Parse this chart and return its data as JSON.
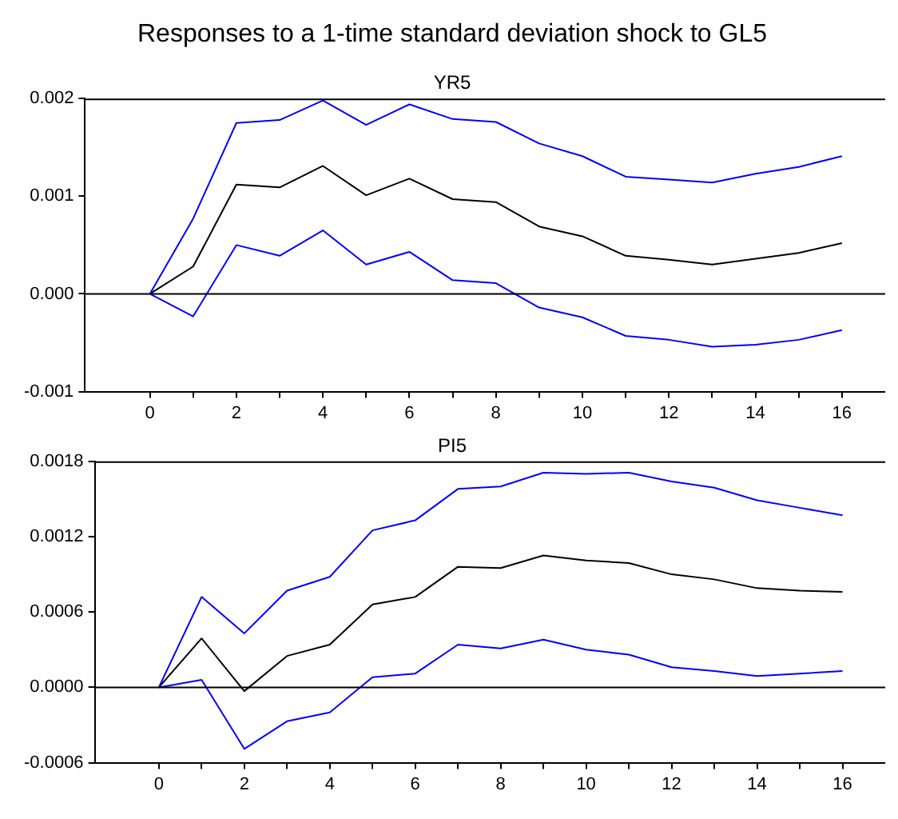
{
  "chart_data": [
    {
      "type": "line",
      "title": "Responses to a 1-time standard deviation shock to GL5",
      "subtitle": "YR5",
      "x": [
        0,
        1,
        2,
        3,
        4,
        5,
        6,
        7,
        8,
        9,
        10,
        11,
        12,
        13,
        14,
        15,
        16
      ],
      "series": [
        {
          "color": "#0000ff",
          "values": [
            0,
            0.00077,
            0.00175,
            0.00178,
            0.00198,
            0.00173,
            0.00194,
            0.00179,
            0.00176,
            0.00154,
            0.00141,
            0.0012,
            0.00117,
            0.00114,
            0.00123,
            0.0013,
            0.00141
          ]
        },
        {
          "color": "#000000",
          "values": [
            0,
            0.00028,
            0.00112,
            0.00109,
            0.00131,
            0.00101,
            0.00118,
            0.00097,
            0.00094,
            0.00069,
            0.00059,
            0.00039,
            0.00035,
            0.0003,
            0.00036,
            0.00042,
            0.00052
          ]
        },
        {
          "color": "#0000ff",
          "values": [
            0,
            -0.00023,
            0.0005,
            0.00039,
            0.00065,
            0.0003,
            0.00043,
            0.00014,
            0.00011,
            -0.00014,
            -0.00024,
            -0.00043,
            -0.00047,
            -0.00054,
            -0.00052,
            -0.00047,
            -0.00037
          ]
        }
      ],
      "xlim": [
        -1.5,
        17
      ],
      "xticks": [
        0,
        {
          "value": 1,
          "label": null
        },
        2,
        {
          "value": 3,
          "label": null
        },
        4,
        {
          "value": 5,
          "label": null
        },
        6,
        {
          "value": 7,
          "label": null
        },
        8,
        {
          "value": 9,
          "label": null
        },
        10,
        {
          "value": 11,
          "label": null
        },
        12,
        {
          "value": 13,
          "label": null
        },
        14,
        {
          "value": 15,
          "label": null
        },
        16
      ],
      "ylim": [
        -0.001,
        0.002
      ],
      "yticks": [
        {
          "value": -0.001,
          "label": "-0.001"
        },
        {
          "value": 0,
          "label": "0.000"
        },
        {
          "value": 0.001,
          "label": "0.001"
        },
        {
          "value": 0.002,
          "label": "0.002"
        }
      ],
      "ref_lines": [
        {
          "axis": "y",
          "value": 0,
          "color": "#000000"
        }
      ],
      "grid": false,
      "legend": false,
      "marker": "none",
      "line_style": "solid"
    },
    {
      "type": "line",
      "title": "PI5",
      "x": [
        0,
        1,
        2,
        3,
        4,
        5,
        6,
        7,
        8,
        9,
        10,
        11,
        12,
        13,
        14,
        15,
        16
      ],
      "series": [
        {
          "color": "#0000ff",
          "values": [
            0,
            0.00072,
            0.00043,
            0.00077,
            0.00088,
            0.00125,
            0.00133,
            0.00158,
            0.0016,
            0.00171,
            0.0017,
            0.00171,
            0.00164,
            0.00159,
            0.00149,
            0.00143,
            0.00137
          ]
        },
        {
          "color": "#000000",
          "values": [
            0,
            0.00039,
            -3e-05,
            0.00025,
            0.00034,
            0.00066,
            0.00072,
            0.00096,
            0.00095,
            0.00105,
            0.00101,
            0.00099,
            0.0009,
            0.00086,
            0.00079,
            0.00077,
            0.00076
          ]
        },
        {
          "color": "#0000ff",
          "values": [
            0,
            6e-05,
            -0.00049,
            -0.00027,
            -0.0002,
            8e-05,
            0.00011,
            0.00034,
            0.00031,
            0.00038,
            0.0003,
            0.00026,
            0.00016,
            0.00013,
            9e-05,
            0.00011,
            0.00013
          ]
        }
      ],
      "xlim": [
        -1.5,
        17
      ],
      "xticks": [
        0,
        {
          "value": 1,
          "label": null
        },
        2,
        {
          "value": 3,
          "label": null
        },
        4,
        {
          "value": 5,
          "label": null
        },
        6,
        {
          "value": 7,
          "label": null
        },
        8,
        {
          "value": 9,
          "label": null
        },
        10,
        {
          "value": 11,
          "label": null
        },
        12,
        {
          "value": 13,
          "label": null
        },
        14,
        {
          "value": 15,
          "label": null
        },
        16
      ],
      "ylim": [
        -0.0006,
        0.0018
      ],
      "yticks": [
        {
          "value": -0.0006,
          "label": "-0.0006"
        },
        {
          "value": 0,
          "label": "0.0000"
        },
        {
          "value": 0.0006,
          "label": "0.0006"
        },
        {
          "value": 0.0012,
          "label": "0.0012"
        },
        {
          "value": 0.0018,
          "label": "0.0018"
        }
      ],
      "ref_lines": [
        {
          "axis": "y",
          "value": 0,
          "color": "#000000"
        }
      ],
      "grid": false,
      "legend": false,
      "marker": "none",
      "line_style": "solid"
    }
  ]
}
